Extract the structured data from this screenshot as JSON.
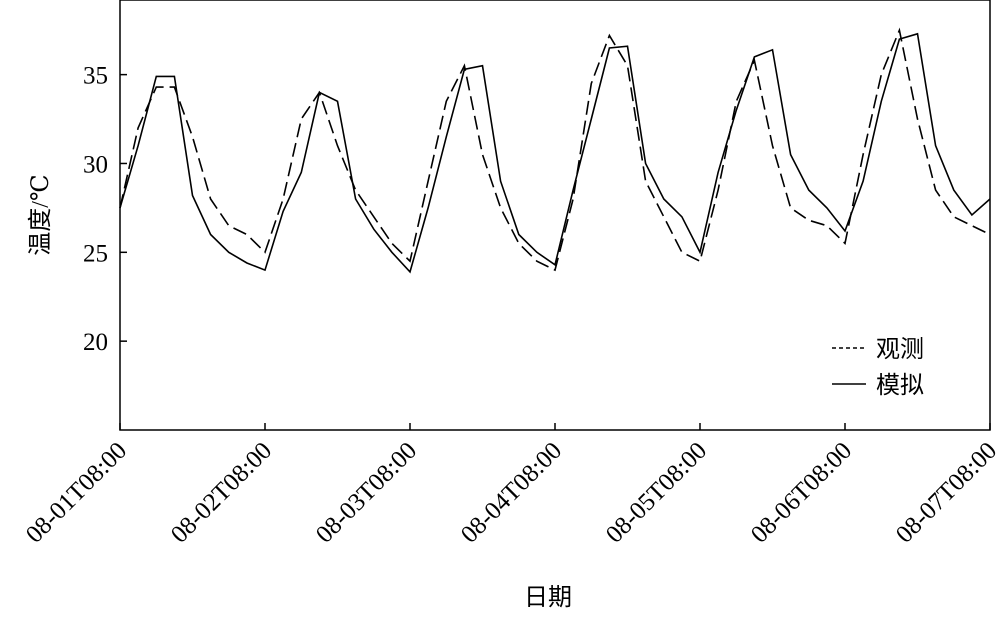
{
  "chart_data": {
    "type": "line",
    "xlabel": "日期",
    "ylabel": "温度/℃",
    "x": [
      "08-01T08:00",
      "08-01T11:00",
      "08-01T14:00",
      "08-01T17:00",
      "08-01T20:00",
      "08-01T23:00",
      "08-02T02:00",
      "08-02T05:00",
      "08-02T08:00",
      "08-02T11:00",
      "08-02T14:00",
      "08-02T17:00",
      "08-02T20:00",
      "08-02T23:00",
      "08-03T02:00",
      "08-03T05:00",
      "08-03T08:00",
      "08-03T11:00",
      "08-03T14:00",
      "08-03T17:00",
      "08-03T20:00",
      "08-03T23:00",
      "08-04T02:00",
      "08-04T05:00",
      "08-04T08:00",
      "08-04T11:00",
      "08-04T14:00",
      "08-04T17:00",
      "08-04T20:00",
      "08-04T23:00",
      "08-05T02:00",
      "08-05T05:00",
      "08-05T08:00",
      "08-05T11:00",
      "08-05T14:00",
      "08-05T17:00",
      "08-05T20:00",
      "08-05T23:00",
      "08-06T02:00",
      "08-06T05:00",
      "08-06T08:00",
      "08-06T11:00",
      "08-06T14:00",
      "08-06T17:00",
      "08-06T20:00",
      "08-06T23:00",
      "08-07T02:00",
      "08-07T05:00",
      "08-07T08:00"
    ],
    "xticks": [
      "08-01T08:00",
      "08-02T08:00",
      "08-03T08:00",
      "08-04T08:00",
      "08-05T08:00",
      "08-06T08:00",
      "08-07T08:00"
    ],
    "ylim": [
      15,
      39.2
    ],
    "yticks": [
      20,
      25,
      30,
      35
    ],
    "series": [
      {
        "name": "观测",
        "color": "#000000",
        "style": "dashed",
        "values": [
          27.5,
          32.0,
          34.3,
          34.3,
          31.5,
          28.0,
          26.5,
          26.0,
          25.0,
          28.0,
          32.5,
          34.0,
          31.0,
          28.5,
          27.0,
          25.5,
          24.5,
          29.0,
          33.5,
          35.5,
          30.5,
          27.5,
          25.5,
          24.5,
          24.0,
          28.0,
          34.5,
          37.2,
          35.5,
          29.0,
          27.0,
          25.0,
          24.5,
          28.5,
          33.5,
          35.8,
          31.0,
          27.5,
          26.8,
          26.5,
          25.5,
          30.5,
          35.0,
          37.5,
          32.5,
          28.5,
          27.0,
          26.5,
          26.0
        ]
      },
      {
        "name": "模拟",
        "color": "#000000",
        "style": "solid",
        "values": [
          27.5,
          31.0,
          34.9,
          34.9,
          28.2,
          26.0,
          25.0,
          24.4,
          24.0,
          27.3,
          29.5,
          34.0,
          33.5,
          28.0,
          26.3,
          25.0,
          23.9,
          27.5,
          31.5,
          35.3,
          35.5,
          29.0,
          26.0,
          25.0,
          24.3,
          28.5,
          32.5,
          36.5,
          36.6,
          30.0,
          28.0,
          27.0,
          25.0,
          29.5,
          33.0,
          36.0,
          36.4,
          30.5,
          28.5,
          27.5,
          26.2,
          29.0,
          33.5,
          37.0,
          37.3,
          31.0,
          28.5,
          27.1,
          28.0
        ]
      }
    ],
    "legend": "lower right"
  }
}
